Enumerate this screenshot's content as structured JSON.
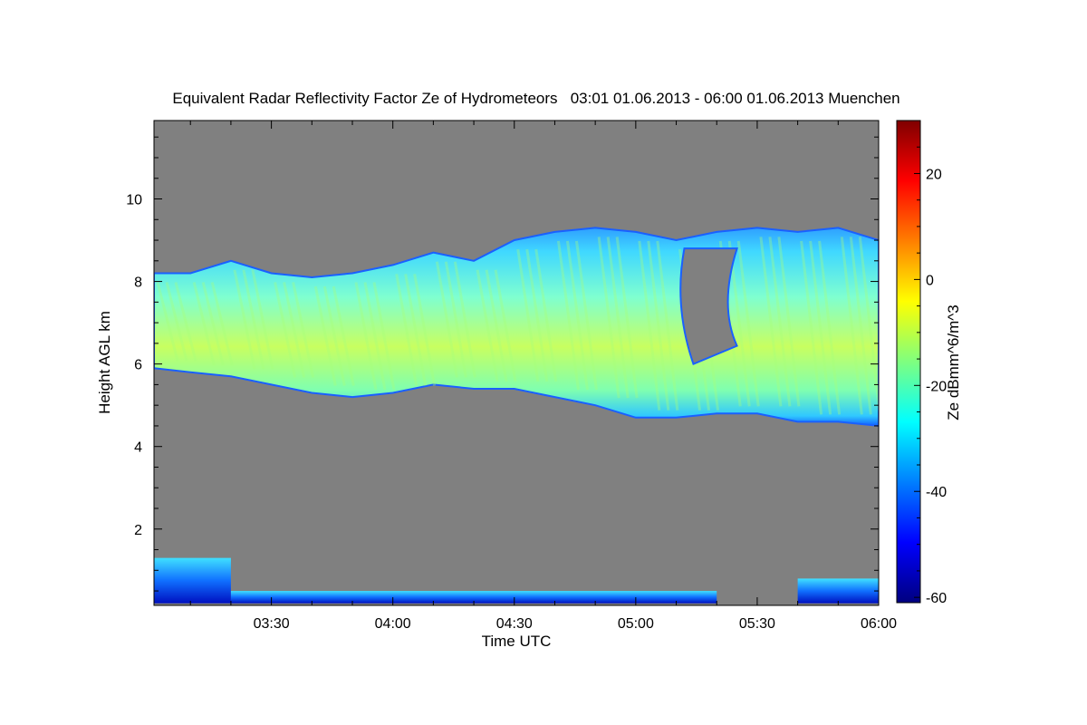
{
  "chart_data": {
    "type": "heatmap",
    "title": "Equivalent Radar Reflectivity Factor Ze of Hydrometeors   03:01 01.06.2013 - 06:00 01.06.2013 Muenchen",
    "xlabel": "Time UTC",
    "ylabel": "Height AGL km",
    "colorbar_label": "Ze dBmm^6/m^3",
    "xlim": [
      "03:01",
      "06:00"
    ],
    "ylim": [
      0.15,
      11.9
    ],
    "x_ticks": [
      "03:30",
      "04:00",
      "04:30",
      "05:00",
      "05:30",
      "06:00"
    ],
    "y_ticks": [
      2,
      4,
      6,
      8,
      10
    ],
    "colorbar_range": [
      -61,
      30
    ],
    "colorbar_ticks": [
      20,
      0,
      -20,
      -40,
      -60
    ],
    "background_color": "#808080",
    "colormap": [
      "#00007f",
      "#0000ff",
      "#007fff",
      "#00ffff",
      "#7fff7f",
      "#ffff00",
      "#ff7f00",
      "#ff0000",
      "#7f0000"
    ],
    "layers": [
      {
        "name": "upper cloud layer",
        "time": [
          "03:01",
          "03:10",
          "03:20",
          "03:30",
          "03:40",
          "03:50",
          "04:00",
          "04:10",
          "04:20",
          "04:30",
          "04:40",
          "04:50",
          "05:00",
          "05:10",
          "05:20",
          "05:30",
          "05:40",
          "05:50",
          "06:00"
        ],
        "top_km": [
          8.2,
          8.2,
          8.5,
          8.2,
          8.1,
          8.2,
          8.4,
          8.7,
          8.5,
          9.0,
          9.2,
          9.3,
          9.2,
          9.0,
          9.2,
          9.3,
          9.2,
          9.3,
          9.0
        ],
        "base_km": [
          5.9,
          5.8,
          5.7,
          5.5,
          5.3,
          5.2,
          5.3,
          5.5,
          5.4,
          5.4,
          5.2,
          5.0,
          4.7,
          4.7,
          4.8,
          4.8,
          4.6,
          4.6,
          4.5
        ],
        "core_ze_dbz": [
          -22,
          -20,
          -18,
          -15,
          -15,
          -16,
          -17,
          -18,
          -19,
          -15,
          -12,
          -14,
          -12,
          -18,
          -20,
          -16,
          -14,
          -12,
          -12
        ]
      },
      {
        "name": "low level echo",
        "segments": [
          {
            "start": "03:01",
            "end": "03:20",
            "top_km": 1.3,
            "base_km": 0.2
          },
          {
            "start": "03:20",
            "end": "05:20",
            "top_km": 0.5,
            "base_km": 0.2
          },
          {
            "start": "05:40",
            "end": "06:00",
            "top_km": 0.8,
            "base_km": 0.2
          }
        ],
        "core_ze_dbz": -35
      }
    ],
    "gaps": [
      {
        "start": "05:12",
        "end": "05:25",
        "from_km": 6.0,
        "to_km": 8.8
      }
    ]
  }
}
